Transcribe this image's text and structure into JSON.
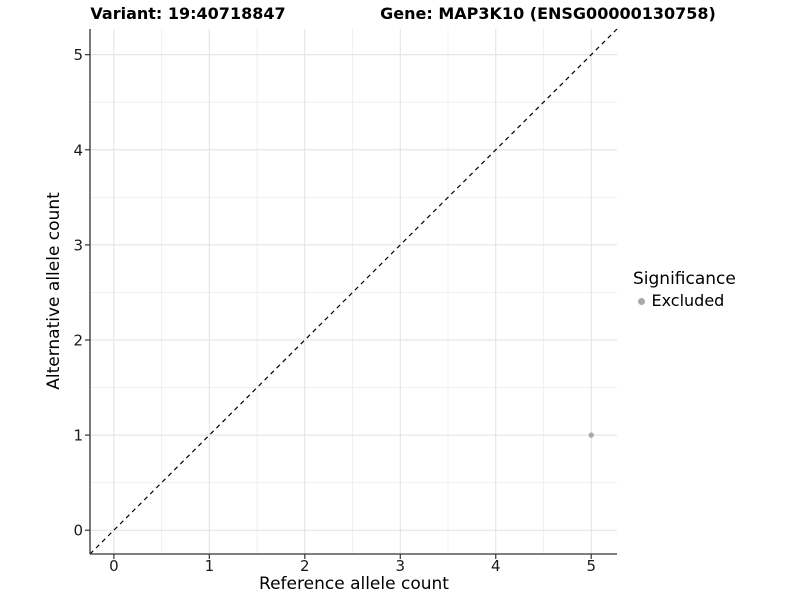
{
  "chart_data": {
    "type": "scatter",
    "title_left": "Variant: 19:40718847",
    "title_right": "Gene: MAP3K10 (ENSG00000130758)",
    "xlabel": "Reference allele count",
    "ylabel": "Alternative allele count",
    "xlim": [
      -0.25,
      5.27
    ],
    "ylim": [
      -0.25,
      5.27
    ],
    "xticks": [
      0,
      1,
      2,
      3,
      4,
      5
    ],
    "yticks": [
      0,
      1,
      2,
      3,
      4,
      5
    ],
    "xticks_minor": [
      0.5,
      1.5,
      2.5,
      3.5,
      4.5
    ],
    "yticks_minor": [
      0.5,
      1.5,
      2.5,
      3.5,
      4.5
    ],
    "grid": "major and minor gridlines on white background",
    "reference_line": {
      "type": "identity y=x",
      "style": "dashed",
      "color": "#000000"
    },
    "series": [
      {
        "name": "Excluded",
        "color": "#a9a9a9",
        "marker": "circle",
        "points": [
          {
            "x": 5,
            "y": 1
          }
        ]
      }
    ],
    "legend": {
      "title": "Significance",
      "position": "right",
      "entries": [
        {
          "label": "Excluded",
          "color": "#a9a9a9"
        }
      ]
    },
    "colors": {
      "background": "#ffffff",
      "grid_major": "#e2e2e2",
      "grid_minor": "#f0f0f0",
      "axis_line": "#333333",
      "tick_text": "#1a1a1a",
      "title_text": "#000000"
    }
  }
}
